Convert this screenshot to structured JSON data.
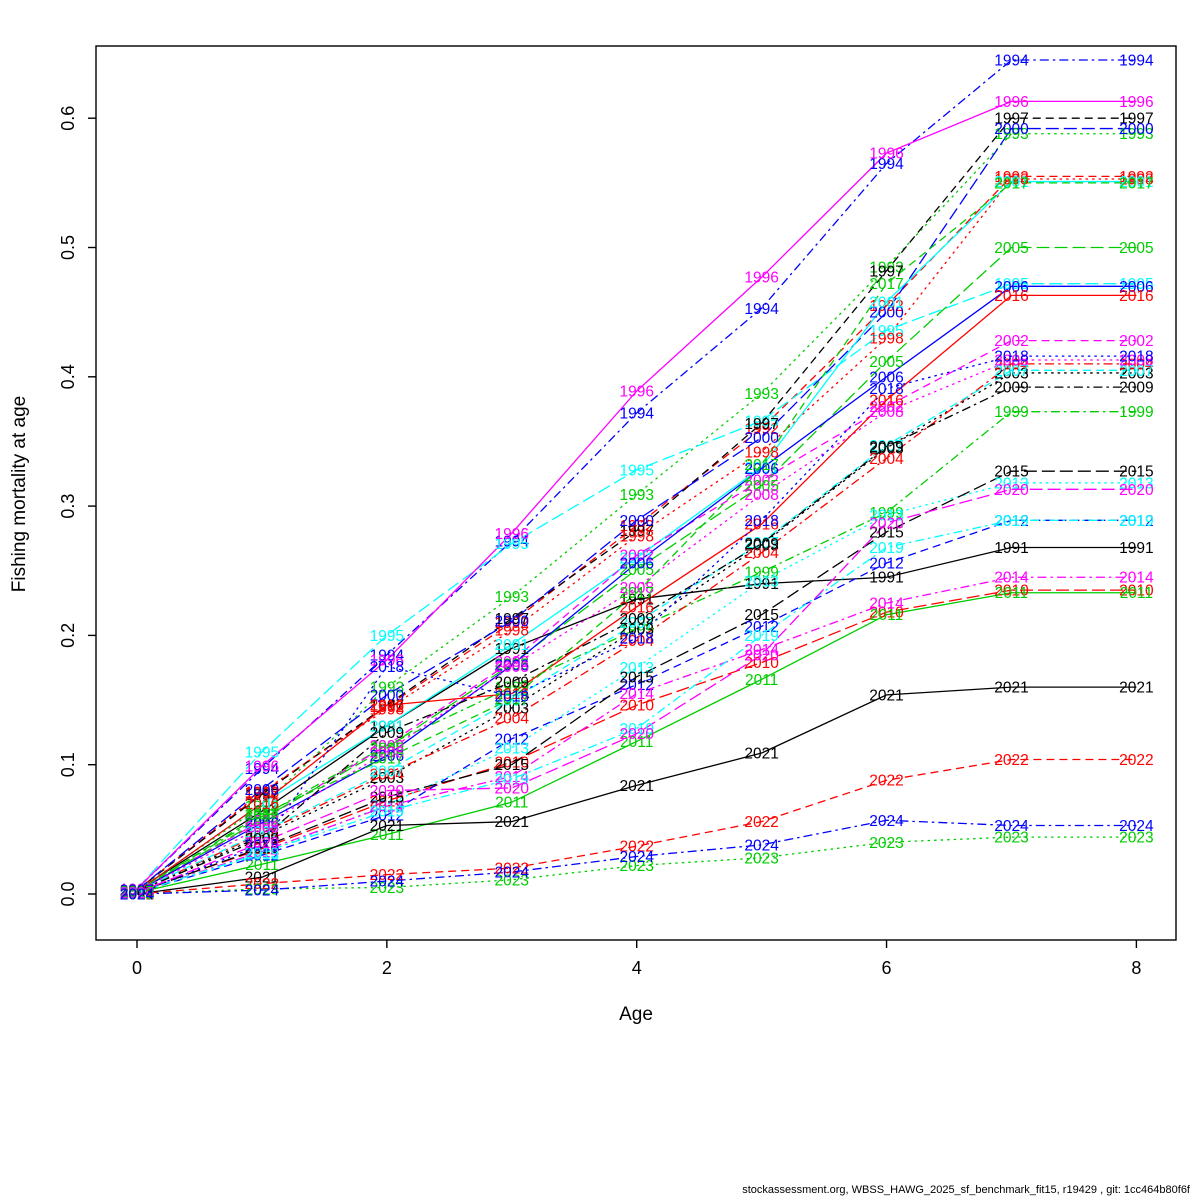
{
  "footer": {
    "text": "stockassessment.org, WBSS_HAWG_2025_sf_benchmark_fit15, r19429 , git: 1cc464b80f6f"
  },
  "chart_data": {
    "type": "line",
    "title": "",
    "xlabel": "Age",
    "ylabel": "Fishing mortality at age",
    "x": [
      0,
      1,
      2,
      3,
      4,
      5,
      6,
      7,
      8
    ],
    "x_ticks": [
      0,
      2,
      4,
      6,
      8
    ],
    "y_ticks": [
      0.0,
      0.1,
      0.2,
      0.3,
      0.4,
      0.5,
      0.6
    ],
    "xlim": [
      -0.33,
      8.32
    ],
    "ylim": [
      -0.036,
      0.656
    ],
    "grid": "off",
    "legend": "labels-on-points",
    "palette": {
      "black": "#000000",
      "red": "#FF0000",
      "green": "#00CD00",
      "blue": "#0000FF",
      "cyan": "#00FFFF",
      "magenta": "#FF00FF"
    },
    "series": [
      {
        "name": "1991",
        "color": "black",
        "lty": "solid",
        "values": [
          0.003,
          0.064,
          0.13,
          0.19,
          0.228,
          0.24,
          0.245,
          0.268,
          0.268
        ]
      },
      {
        "name": "1992",
        "color": "red",
        "lty": "dashed",
        "values": [
          0.003,
          0.078,
          0.145,
          0.21,
          0.285,
          0.36,
          0.455,
          0.555,
          0.555
        ]
      },
      {
        "name": "1993",
        "color": "green",
        "lty": "dotted",
        "values": [
          0.003,
          0.068,
          0.16,
          0.23,
          0.309,
          0.387,
          0.485,
          0.588,
          0.588
        ]
      },
      {
        "name": "1994",
        "color": "blue",
        "lty": "dotdash",
        "values": [
          0.004,
          0.097,
          0.185,
          0.273,
          0.372,
          0.453,
          0.565,
          0.645,
          0.645
        ]
      },
      {
        "name": "1995",
        "color": "cyan",
        "lty": "longdash",
        "values": [
          0.004,
          0.11,
          0.2,
          0.271,
          0.328,
          0.366,
          0.436,
          0.472,
          0.472
        ]
      },
      {
        "name": "1996",
        "color": "magenta",
        "lty": "solid",
        "values": [
          0.004,
          0.099,
          0.181,
          0.279,
          0.389,
          0.477,
          0.573,
          0.613,
          0.613
        ]
      },
      {
        "name": "1997",
        "color": "black",
        "lty": "dashed",
        "values": [
          0.003,
          0.077,
          0.146,
          0.213,
          0.281,
          0.364,
          0.482,
          0.6,
          0.6
        ]
      },
      {
        "name": "1998",
        "color": "red",
        "lty": "dotted",
        "values": [
          0.003,
          0.079,
          0.143,
          0.204,
          0.277,
          0.342,
          0.43,
          0.553,
          0.553
        ]
      },
      {
        "name": "1999",
        "color": "green",
        "lty": "dotdash",
        "values": [
          0.003,
          0.06,
          0.115,
          0.16,
          0.205,
          0.249,
          0.295,
          0.373,
          0.373
        ]
      },
      {
        "name": "2000",
        "color": "blue",
        "lty": "longdash",
        "values": [
          0.003,
          0.081,
          0.154,
          0.211,
          0.289,
          0.353,
          0.45,
          0.592,
          0.592
        ]
      },
      {
        "name": "2001",
        "color": "cyan",
        "lty": "solid",
        "values": [
          0.002,
          0.07,
          0.13,
          0.193,
          0.26,
          0.33,
          0.458,
          0.551,
          0.551
        ]
      },
      {
        "name": "2002",
        "color": "magenta",
        "lty": "dashed",
        "values": [
          0.002,
          0.057,
          0.115,
          0.18,
          0.262,
          0.32,
          0.377,
          0.428,
          0.428
        ]
      },
      {
        "name": "2003",
        "color": "black",
        "lty": "dotted",
        "values": [
          0.002,
          0.045,
          0.09,
          0.144,
          0.205,
          0.27,
          0.345,
          0.403,
          0.403
        ]
      },
      {
        "name": "2004",
        "color": "red",
        "lty": "dotdash",
        "values": [
          0.002,
          0.047,
          0.093,
          0.136,
          0.196,
          0.264,
          0.337,
          0.41,
          0.41
        ]
      },
      {
        "name": "2005",
        "color": "green",
        "lty": "longdash",
        "values": [
          0.002,
          0.058,
          0.113,
          0.178,
          0.251,
          0.316,
          0.412,
          0.5,
          0.5
        ]
      },
      {
        "name": "2006",
        "color": "blue",
        "lty": "solid",
        "values": [
          0.002,
          0.055,
          0.107,
          0.177,
          0.256,
          0.329,
          0.4,
          0.47,
          0.47
        ]
      },
      {
        "name": "2007",
        "color": "cyan",
        "lty": "dashed",
        "values": [
          0.002,
          0.048,
          0.095,
          0.15,
          0.21,
          0.272,
          0.347,
          0.405,
          0.405
        ]
      },
      {
        "name": "2008",
        "color": "magenta",
        "lty": "dotted",
        "values": [
          0.002,
          0.052,
          0.11,
          0.176,
          0.237,
          0.309,
          0.373,
          0.413,
          0.413
        ]
      },
      {
        "name": "2009",
        "color": "black",
        "lty": "dotdash",
        "values": [
          0.002,
          0.043,
          0.125,
          0.164,
          0.213,
          0.271,
          0.346,
          0.392,
          0.392
        ]
      },
      {
        "name": "2010",
        "color": "red",
        "lty": "longdash",
        "values": [
          0.002,
          0.035,
          0.072,
          0.102,
          0.146,
          0.179,
          0.218,
          0.235,
          0.235
        ]
      },
      {
        "name": "2011",
        "color": "green",
        "lty": "solid",
        "values": [
          0.001,
          0.023,
          0.046,
          0.071,
          0.118,
          0.166,
          0.216,
          0.233,
          0.233
        ]
      },
      {
        "name": "2012",
        "color": "blue",
        "lty": "dashed",
        "values": [
          0.001,
          0.03,
          0.061,
          0.12,
          0.162,
          0.207,
          0.256,
          0.289,
          0.289
        ]
      },
      {
        "name": "2013",
        "color": "cyan",
        "lty": "dotted",
        "values": [
          0.001,
          0.031,
          0.069,
          0.113,
          0.175,
          0.242,
          0.293,
          0.318,
          0.318
        ]
      },
      {
        "name": "2014",
        "color": "magenta",
        "lty": "dotdash",
        "values": [
          0.001,
          0.033,
          0.068,
          0.091,
          0.155,
          0.189,
          0.225,
          0.245,
          0.245
        ]
      },
      {
        "name": "2015",
        "color": "black",
        "lty": "longdash",
        "values": [
          0.001,
          0.036,
          0.075,
          0.1,
          0.168,
          0.216,
          0.28,
          0.327,
          0.327
        ]
      },
      {
        "name": "2016",
        "color": "red",
        "lty": "solid",
        "values": [
          0.002,
          0.07,
          0.146,
          0.155,
          0.222,
          0.286,
          0.382,
          0.463,
          0.463
        ]
      },
      {
        "name": "2017",
        "color": "green",
        "lty": "dashed",
        "values": [
          0.002,
          0.062,
          0.105,
          0.151,
          0.233,
          0.332,
          0.472,
          0.55,
          0.55
        ]
      },
      {
        "name": "2018",
        "color": "blue",
        "lty": "dotted",
        "values": [
          0.001,
          0.038,
          0.176,
          0.153,
          0.198,
          0.289,
          0.391,
          0.416,
          0.416
        ]
      },
      {
        "name": "2019",
        "color": "cyan",
        "lty": "dotdash",
        "values": [
          0.001,
          0.032,
          0.064,
          0.089,
          0.128,
          0.2,
          0.268,
          0.289,
          0.289
        ]
      },
      {
        "name": "2020",
        "color": "magenta",
        "lty": "longdash",
        "values": [
          0.001,
          0.04,
          0.08,
          0.082,
          0.124,
          0.185,
          0.287,
          0.313,
          0.313
        ]
      },
      {
        "name": "2021",
        "color": "black",
        "lty": "solid",
        "values": [
          0.0,
          0.013,
          0.053,
          0.056,
          0.084,
          0.109,
          0.154,
          0.16,
          0.16
        ]
      },
      {
        "name": "2022",
        "color": "red",
        "lty": "dashed",
        "values": [
          0.0,
          0.008,
          0.015,
          0.02,
          0.037,
          0.056,
          0.088,
          0.104,
          0.104
        ]
      },
      {
        "name": "2023",
        "color": "green",
        "lty": "dotted",
        "values": [
          0.0,
          0.004,
          0.005,
          0.011,
          0.022,
          0.028,
          0.04,
          0.044,
          0.044
        ]
      },
      {
        "name": "2024",
        "color": "blue",
        "lty": "dotdash",
        "values": [
          0.0,
          0.003,
          0.01,
          0.017,
          0.029,
          0.038,
          0.057,
          0.053,
          0.053
        ]
      }
    ]
  }
}
